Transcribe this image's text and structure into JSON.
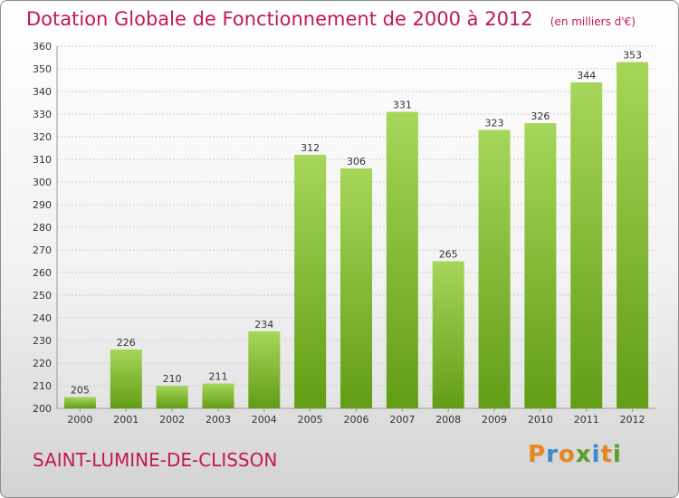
{
  "title": "Dotation Globale de Fonctionnement de 2000 à 2012",
  "unit_note": "(en milliers d'€)",
  "city": "SAINT-LUMINE-DE-CLISSON",
  "logo": {
    "letters": [
      "P",
      "r",
      "o",
      "x",
      "i",
      "t",
      "i"
    ],
    "colors": [
      "#e8871f",
      "#3b8ccf",
      "#e8871f",
      "#5aa02c",
      "#3b8ccf",
      "#e8871f",
      "#5aa02c"
    ]
  },
  "colors": {
    "bar_top": "#a6d65a",
    "bar_bottom": "#629d16",
    "grid": "#cccccc",
    "title": "#c4184f"
  },
  "chart_data": {
    "type": "bar",
    "title": "Dotation Globale de Fonctionnement de 2000 à 2012",
    "subtitle": "(en milliers d'€)",
    "categories": [
      "2000",
      "2001",
      "2002",
      "2003",
      "2004",
      "2005",
      "2006",
      "2007",
      "2008",
      "2009",
      "2010",
      "2011",
      "2012"
    ],
    "values": [
      205,
      226,
      210,
      211,
      234,
      312,
      306,
      331,
      265,
      323,
      326,
      344,
      353
    ],
    "xlabel": "",
    "ylabel": "",
    "ylim": [
      200,
      360
    ],
    "yticks": [
      200,
      210,
      220,
      230,
      240,
      250,
      260,
      270,
      280,
      290,
      300,
      310,
      320,
      330,
      340,
      350,
      360
    ],
    "grid": true,
    "legend": "none"
  }
}
